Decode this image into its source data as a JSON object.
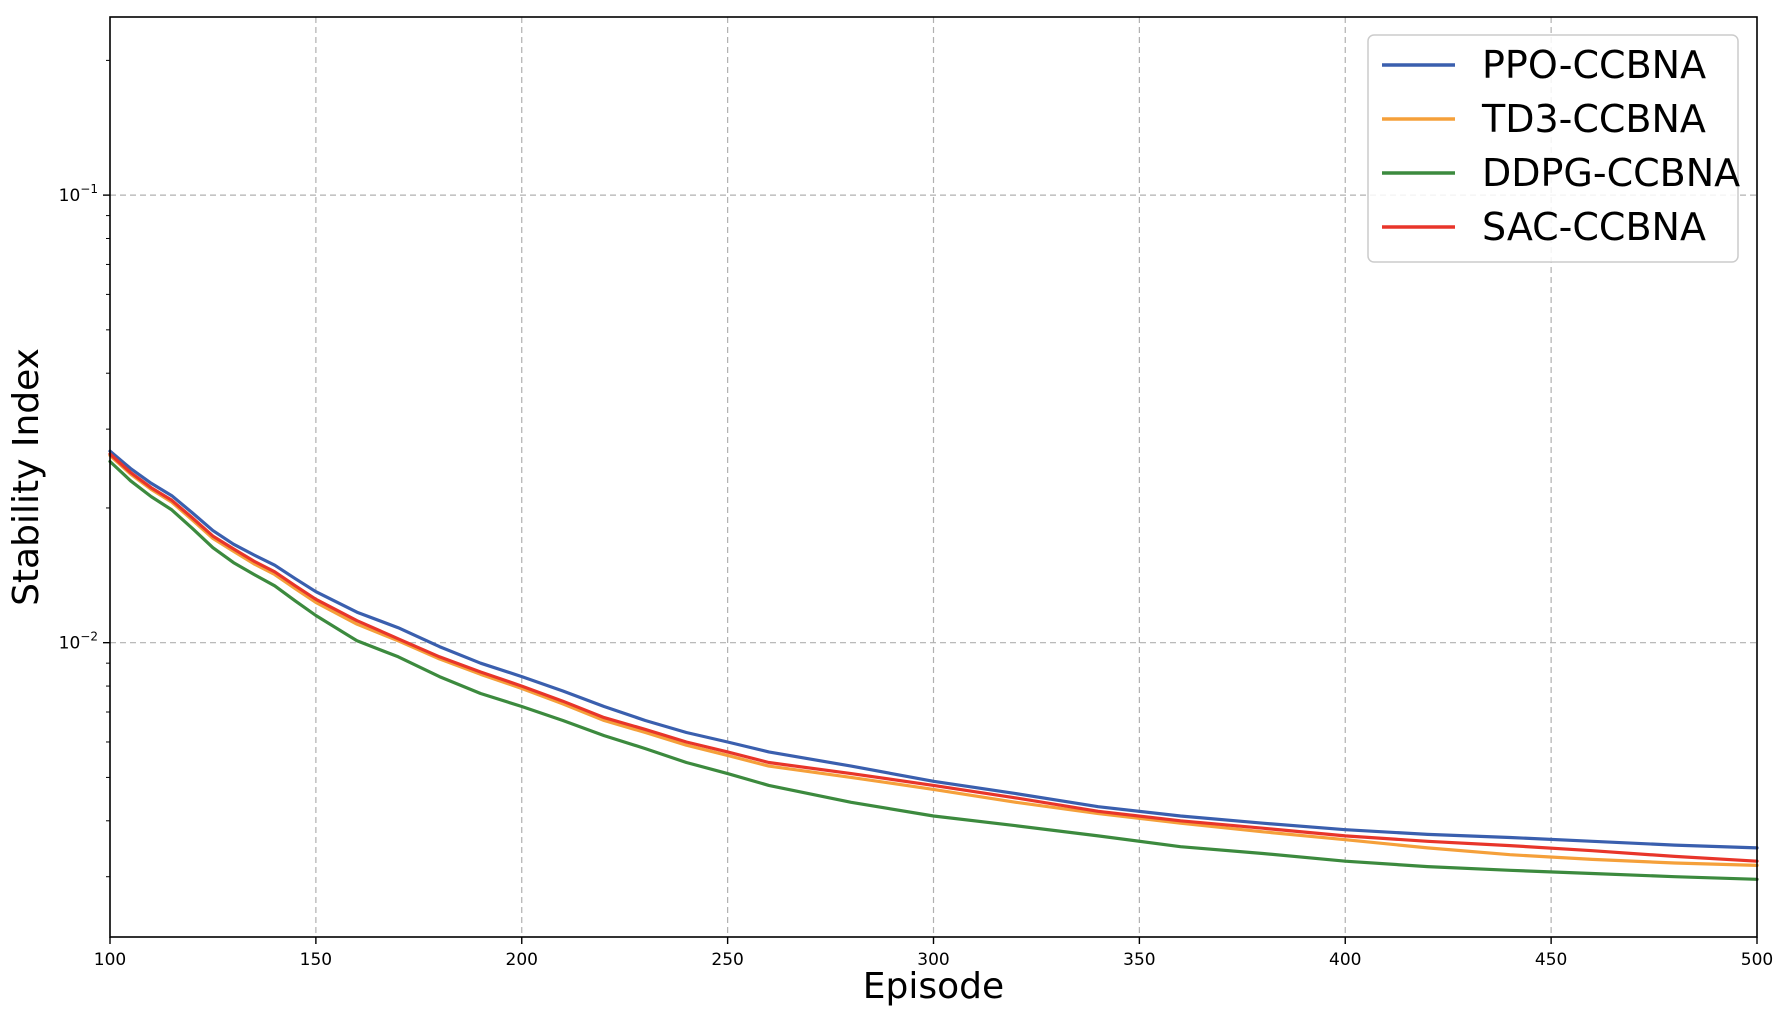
{
  "chart_data": {
    "type": "line",
    "title": "",
    "xlabel": "Episode",
    "ylabel": "Stability Index",
    "xlim": [
      100,
      500
    ],
    "ylim": [
      0.0022,
      0.25
    ],
    "yscale": "log",
    "grid": true,
    "legend_position": "top-right",
    "x_ticks": [
      100,
      150,
      200,
      250,
      300,
      350,
      400,
      450,
      500
    ],
    "y_ticks": [
      {
        "value": 0.01,
        "base": "10",
        "exp": "−2"
      },
      {
        "value": 0.1,
        "base": "10",
        "exp": "−1"
      }
    ],
    "x": [
      100,
      105,
      110,
      115,
      120,
      125,
      130,
      135,
      140,
      145,
      150,
      160,
      170,
      180,
      190,
      200,
      210,
      220,
      230,
      240,
      250,
      260,
      280,
      300,
      320,
      340,
      360,
      380,
      400,
      420,
      440,
      460,
      480,
      500
    ],
    "series": [
      {
        "name": "PPO-CCBNA",
        "color": "#3a5fae",
        "values": [
          0.0268,
          0.0245,
          0.0227,
          0.0213,
          0.0195,
          0.0178,
          0.0166,
          0.0157,
          0.0149,
          0.0139,
          0.013,
          0.0117,
          0.0108,
          0.0098,
          0.009,
          0.0084,
          0.0078,
          0.0072,
          0.0067,
          0.0063,
          0.006,
          0.0057,
          0.0053,
          0.0049,
          0.0046,
          0.0043,
          0.0041,
          0.00395,
          0.00382,
          0.00373,
          0.00367,
          0.0036,
          0.00353,
          0.00348
        ]
      },
      {
        "name": "TD3-CCBNA",
        "color": "#f5a03a",
        "values": [
          0.0262,
          0.0238,
          0.022,
          0.0206,
          0.0188,
          0.0171,
          0.016,
          0.015,
          0.0142,
          0.0132,
          0.0123,
          0.011,
          0.0101,
          0.0092,
          0.0085,
          0.0079,
          0.0073,
          0.0067,
          0.0063,
          0.0059,
          0.0056,
          0.0053,
          0.005,
          0.0047,
          0.0044,
          0.00415,
          0.00395,
          0.00378,
          0.00363,
          0.00348,
          0.00336,
          0.00328,
          0.00322,
          0.00318
        ]
      },
      {
        "name": "DDPG-CCBNA",
        "color": "#3c8a3e",
        "values": [
          0.0254,
          0.023,
          0.0212,
          0.0198,
          0.018,
          0.0163,
          0.0151,
          0.0142,
          0.0134,
          0.0124,
          0.0115,
          0.0101,
          0.0093,
          0.0084,
          0.0077,
          0.0072,
          0.0067,
          0.0062,
          0.0058,
          0.0054,
          0.0051,
          0.0048,
          0.0044,
          0.0041,
          0.0039,
          0.0037,
          0.0035,
          0.00338,
          0.00325,
          0.00316,
          0.0031,
          0.00305,
          0.003,
          0.00296
        ]
      },
      {
        "name": "SAC-CCBNA",
        "color": "#e8352a",
        "values": [
          0.0264,
          0.024,
          0.0222,
          0.0208,
          0.019,
          0.0173,
          0.0162,
          0.0152,
          0.0144,
          0.0134,
          0.0125,
          0.0112,
          0.0102,
          0.0093,
          0.0086,
          0.008,
          0.0074,
          0.0068,
          0.0064,
          0.006,
          0.0057,
          0.0054,
          0.0051,
          0.0048,
          0.0045,
          0.0042,
          0.004,
          0.00385,
          0.0037,
          0.0036,
          0.00352,
          0.00343,
          0.00333,
          0.00325
        ]
      }
    ]
  }
}
